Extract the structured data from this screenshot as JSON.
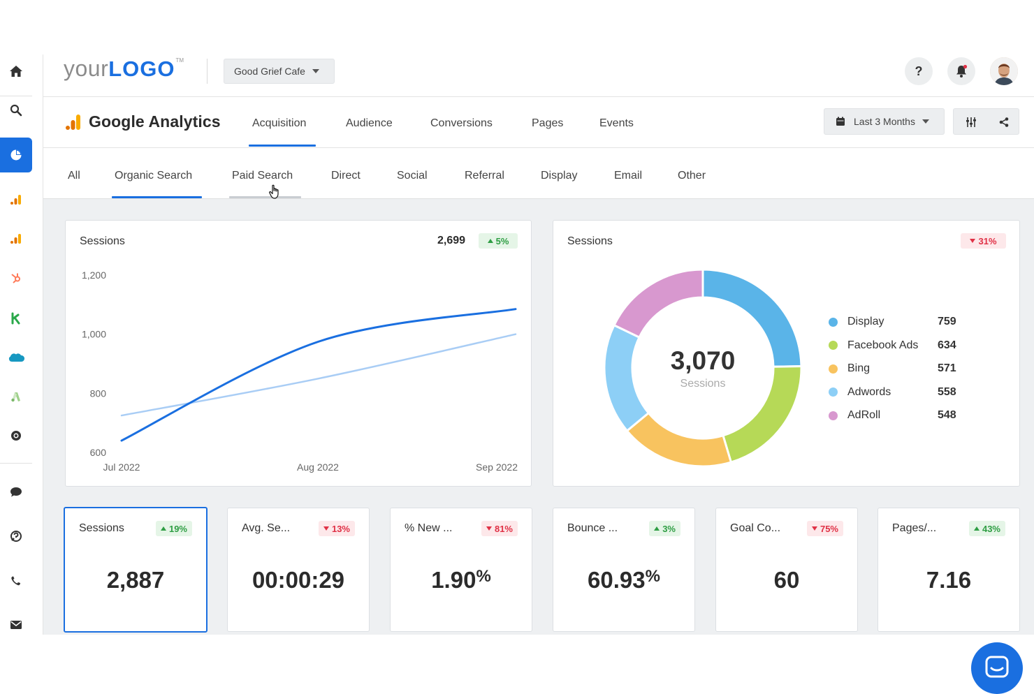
{
  "header": {
    "logo_your": "your",
    "logo_logo": "LOGO",
    "logo_tm": "TM",
    "client_name": "Good Grief Cafe",
    "help_label": "?"
  },
  "section": {
    "title": "Google Analytics",
    "tabs": [
      {
        "label": "Acquisition",
        "active": true
      },
      {
        "label": "Audience"
      },
      {
        "label": "Conversions"
      },
      {
        "label": "Pages"
      },
      {
        "label": "Events"
      }
    ],
    "date_range": "Last 3 Months"
  },
  "subtabs": [
    {
      "label": "All"
    },
    {
      "label": "Organic Search",
      "active": true
    },
    {
      "label": "Paid Search",
      "hover": true
    },
    {
      "label": "Direct"
    },
    {
      "label": "Social"
    },
    {
      "label": "Referral"
    },
    {
      "label": "Display"
    },
    {
      "label": "Email"
    },
    {
      "label": "Other"
    }
  ],
  "line_card": {
    "title": "Sessions",
    "total": "2,699",
    "change": "5%",
    "change_dir": "up"
  },
  "donut_card": {
    "title": "Sessions",
    "change": "31%",
    "change_dir": "down",
    "center_value": "3,070",
    "center_label": "Sessions"
  },
  "kpis": [
    {
      "title": "Sessions",
      "change": "19%",
      "dir": "up",
      "value": "2,887",
      "suffix": "",
      "selected": true
    },
    {
      "title": "Avg. Se...",
      "change": "13%",
      "dir": "down",
      "value": "00:00:29",
      "suffix": ""
    },
    {
      "title": "% New ...",
      "change": "81%",
      "dir": "down",
      "value": "1.90",
      "suffix": "%"
    },
    {
      "title": "Bounce ...",
      "change": "3%",
      "dir": "up",
      "value": "60.93",
      "suffix": "%"
    },
    {
      "title": "Goal Co...",
      "change": "75%",
      "dir": "down",
      "value": "60",
      "suffix": ""
    },
    {
      "title": "Pages/...",
      "change": "43%",
      "dir": "up",
      "value": "7.16",
      "suffix": ""
    }
  ],
  "colors": {
    "accent": "#1a6fe0",
    "line_current": "#1a6fe0",
    "line_previous": "#a9cdf5",
    "up": "#2f9e44",
    "down": "#e03146"
  },
  "chart_data": [
    {
      "type": "line",
      "title": "Sessions",
      "x": [
        "Jul 2022",
        "Aug 2022",
        "Sep 2022"
      ],
      "x_ticks": [
        "Jul 2022",
        "Aug 2022",
        "Sep 2022"
      ],
      "y_ticks": [
        "600",
        "800",
        "1,000",
        "1,200"
      ],
      "ylim": [
        600,
        1200
      ],
      "series": [
        {
          "values": [
            640,
            975,
            1085
          ],
          "color": "#1a6fe0"
        },
        {
          "values": [
            725,
            850,
            1000
          ],
          "color": "#a9cdf5"
        }
      ],
      "grid": false
    },
    {
      "type": "pie",
      "title": "Sessions",
      "donut": true,
      "total": 3070,
      "slices": [
        {
          "label": "Display",
          "value": 759,
          "display": "759",
          "color": "#5ab4e8"
        },
        {
          "label": "Facebook Ads",
          "value": 634,
          "display": "634",
          "color": "#b6d957"
        },
        {
          "label": "Bing",
          "value": 571,
          "display": "571",
          "color": "#f8c35f"
        },
        {
          "label": "Adwords",
          "value": 558,
          "display": "558",
          "color": "#8dcff6"
        },
        {
          "label": "AdRoll",
          "value": 548,
          "display": "548",
          "color": "#d898cf"
        }
      ],
      "legend": "right"
    }
  ]
}
